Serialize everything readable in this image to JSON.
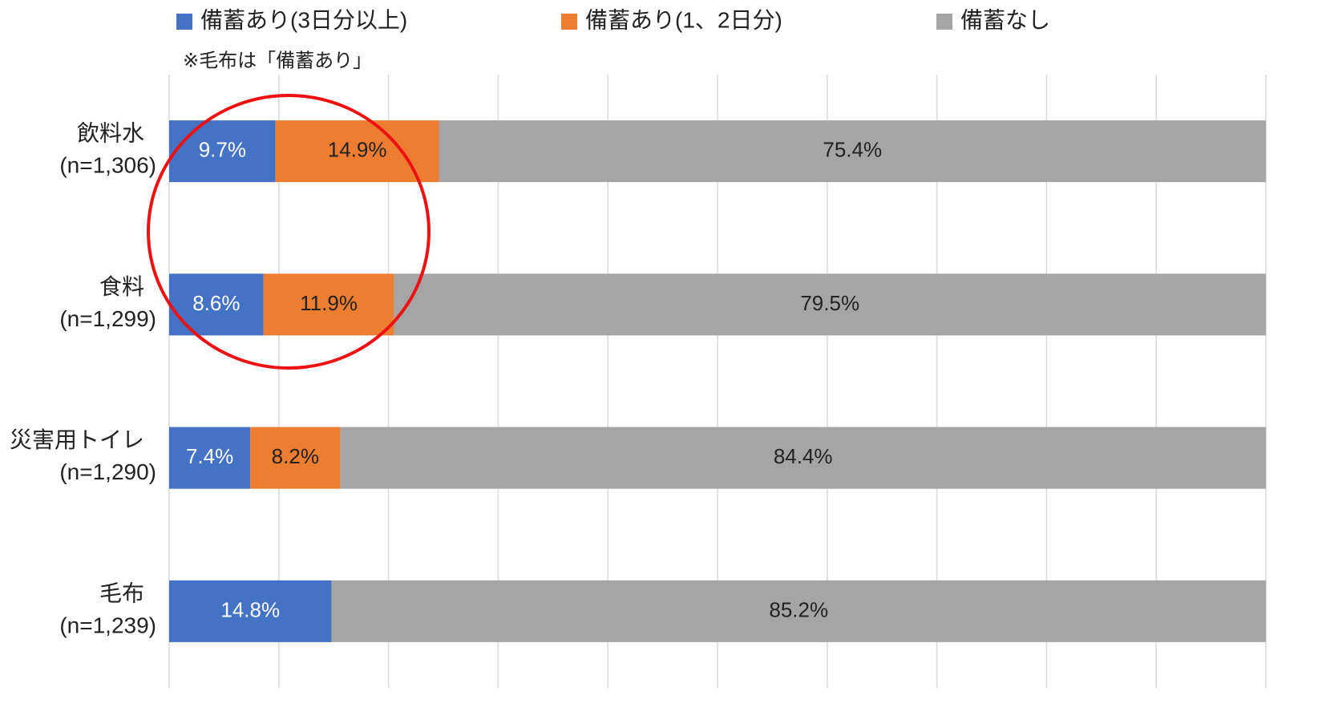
{
  "chart_data": {
    "type": "stacked_barh",
    "annotation": "※毛布は「備蓄あり」",
    "categories": [
      "飲料水\n(n=1,306)",
      "食料\n(n=1,299)",
      "災害用トイレ\n(n=1,290)",
      "毛布\n(n=1,239)"
    ],
    "series": [
      {
        "name": "備蓄あり(3日分以上)",
        "color": "#4472c4",
        "label_color": "#ffffff",
        "values": [
          9.7,
          8.6,
          7.4,
          14.8
        ],
        "value_labels": [
          "9.7%",
          "8.6%",
          "7.4%",
          "14.8%"
        ]
      },
      {
        "name": "備蓄あり(1、2日分)",
        "color": "#ed7d31",
        "label_color": "#222222",
        "values": [
          14.9,
          11.9,
          8.2,
          null
        ],
        "value_labels": [
          "14.9%",
          "11.9%",
          "8.2%",
          null
        ]
      },
      {
        "name": "備蓄なし",
        "color": "#a5a5a5",
        "label_color": "#222222",
        "values": [
          75.4,
          79.5,
          84.4,
          85.2
        ],
        "value_labels": [
          "75.4%",
          "79.5%",
          "84.4%",
          "85.2%"
        ]
      }
    ],
    "xlim": [
      0,
      100
    ],
    "xticks": [
      0,
      10,
      20,
      30,
      40,
      50,
      60,
      70,
      80,
      90,
      100
    ],
    "grid": true
  }
}
